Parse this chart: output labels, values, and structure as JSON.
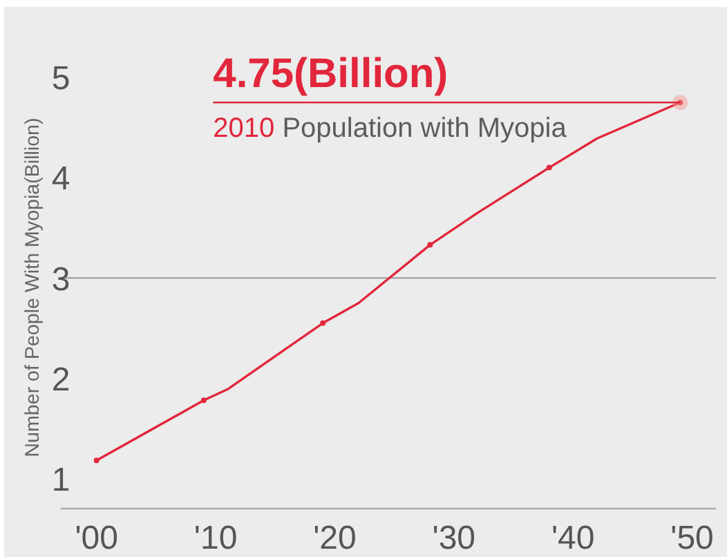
{
  "chart_data": {
    "type": "line",
    "ylabel": "Number of People With Myopia(Billion)",
    "annotations": [
      {
        "text": "4.75(Billion)",
        "x": 2049,
        "y": 4.75
      },
      "2010 Population with Myopia"
    ],
    "series": [
      {
        "color": "#e2263b",
        "marker": "none",
        "x": [
          2000,
          2009,
          2011,
          2019,
          2022,
          2028,
          2032,
          2038,
          2042,
          2049
        ],
        "values": [
          1.18,
          1.78,
          1.89,
          2.55,
          2.75,
          3.33,
          3.65,
          4.1,
          4.39,
          4.75
        ]
      },
      {
        "type": "scatter",
        "color": "#e2263b",
        "marker": "circle",
        "x": [
          2000,
          2009,
          2019,
          2028,
          2038,
          2049
        ],
        "values": [
          1.18,
          1.78,
          2.55,
          3.33,
          4.1,
          4.75
        ]
      }
    ],
    "xlim": [
      1997,
      2052
    ],
    "xticks": [
      {
        "value": 2000,
        "label": "'00"
      },
      {
        "value": 2010,
        "label": "'10"
      },
      {
        "value": 2020,
        "label": "'20"
      },
      {
        "value": 2030,
        "label": "'30"
      },
      {
        "value": 2040,
        "label": "'40"
      },
      {
        "value": 2050,
        "label": "'50"
      }
    ],
    "ylim": [
      0.7,
      5
    ],
    "yticks": [
      1,
      2,
      3,
      4,
      5
    ],
    "ref_lines": [
      {
        "axis": "y",
        "value": 3,
        "color": "#9a9a9a"
      }
    ]
  }
}
